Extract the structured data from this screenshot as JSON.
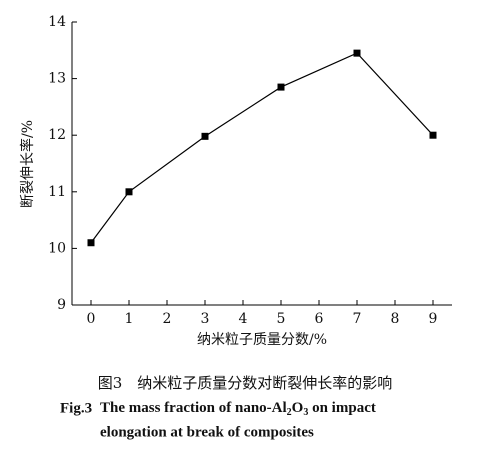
{
  "chart_data": {
    "type": "line",
    "x_label": "纳米粒子质量分数/%",
    "y_label": "断裂伸长率/%",
    "x": [
      0,
      1,
      3,
      5,
      7,
      9
    ],
    "series": [
      {
        "color": "#000000",
        "values": [
          10.1,
          11.0,
          11.98,
          12.85,
          13.45,
          12.0
        ]
      }
    ],
    "xlim": [
      -0.5,
      9.5
    ],
    "xticks": [
      0,
      1,
      2,
      3,
      4,
      5,
      6,
      7,
      8,
      9
    ],
    "ylim": [
      9,
      14
    ],
    "yticks": [
      9,
      10,
      11,
      12,
      13,
      14
    ],
    "grid": false
  },
  "caption": {
    "cn": "图3　纳米粒子质量分数对断裂伸长率的影响",
    "label": "Fig.3",
    "en_line1": [
      "The mass fraction of nano-Al",
      "2",
      "O",
      "3",
      " on impact"
    ],
    "en_line2": "elongation at break of composites"
  }
}
